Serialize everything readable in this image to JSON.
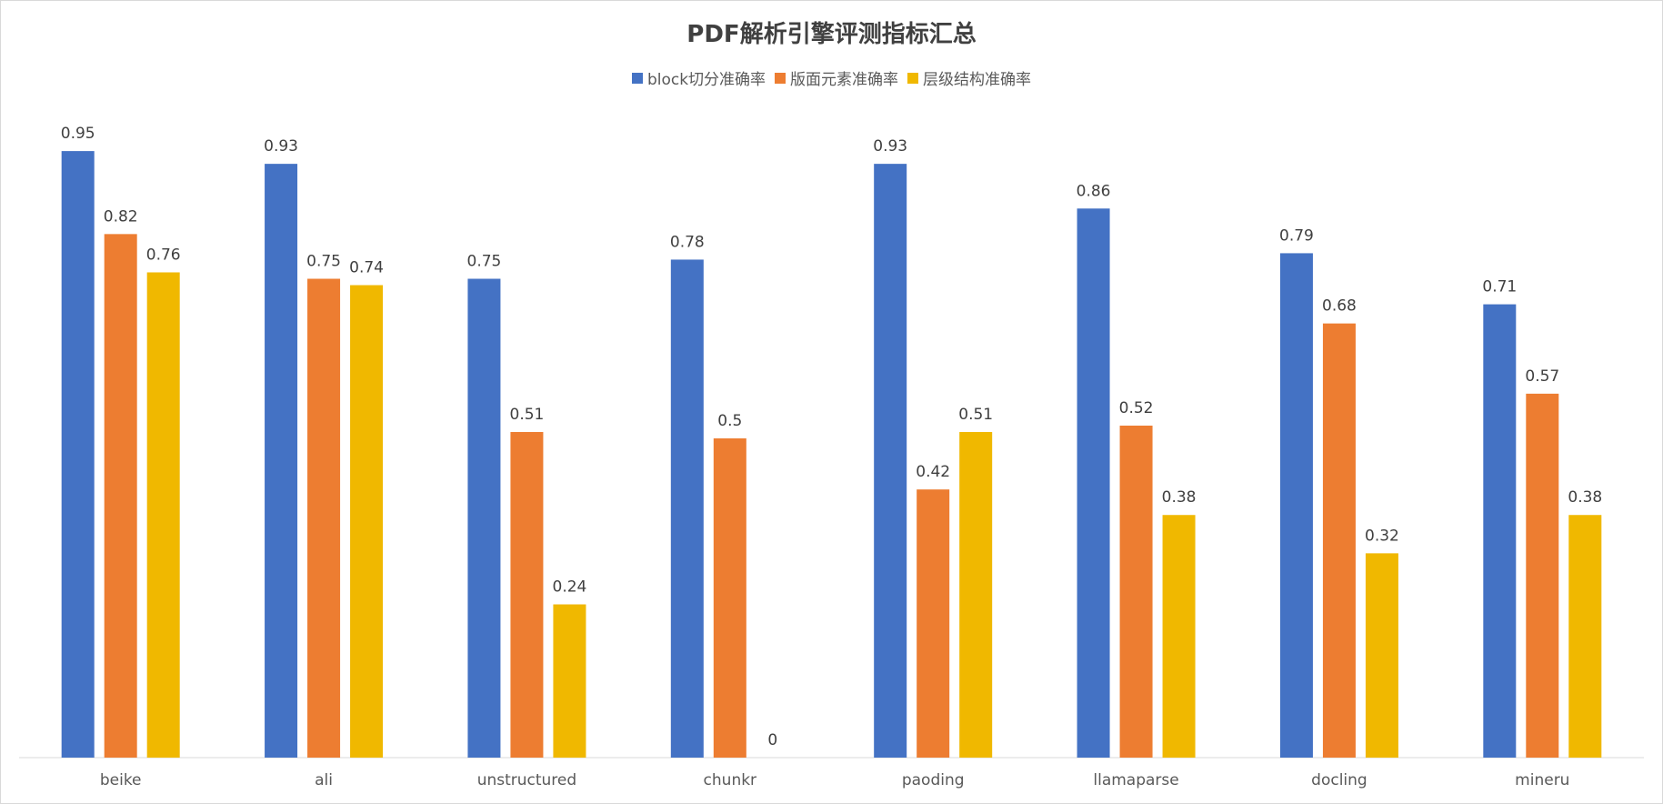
{
  "chart_data": {
    "type": "bar",
    "title": "PDF解析引擎评测指标汇总",
    "legend_position": "top",
    "grid": false,
    "ylim": [
      0,
      1
    ],
    "categories": [
      "beike",
      "ali",
      "unstructured",
      "chunkr",
      "paoding",
      "llamaparse",
      "docling",
      "mineru"
    ],
    "series": [
      {
        "name": "block切分准确率",
        "color": "#4472C4",
        "values": [
          0.95,
          0.93,
          0.75,
          0.78,
          0.93,
          0.86,
          0.79,
          0.71
        ]
      },
      {
        "name": "版面元素准确率",
        "color": "#ED7D31",
        "values": [
          0.82,
          0.75,
          0.51,
          0.5,
          0.42,
          0.52,
          0.68,
          0.57
        ]
      },
      {
        "name": "层级结构准确率",
        "color": "#F0B800",
        "values": [
          0.76,
          0.74,
          0.24,
          0,
          0.51,
          0.38,
          0.32,
          0.38
        ]
      }
    ]
  }
}
